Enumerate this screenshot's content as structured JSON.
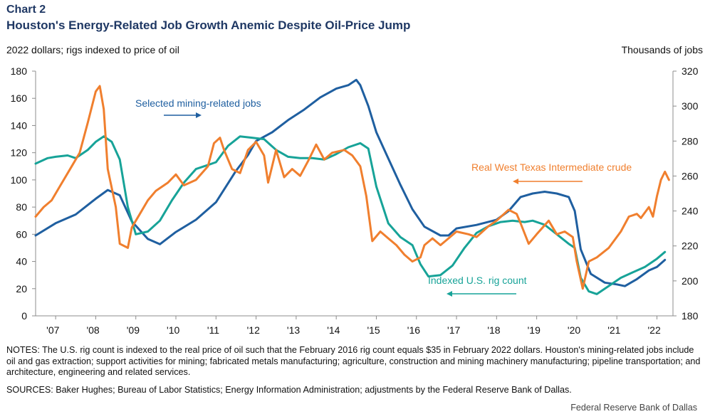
{
  "header": {
    "chart_number": "Chart 2",
    "title": "Houston's Energy-Related Job Growth Anemic Despite Oil-Price Jump",
    "left_unit": "2022 dollars; rigs indexed to price of oil",
    "right_unit": "Thousands  of jobs"
  },
  "footer": {
    "notes": "NOTES: The U.S. rig count is indexed to the real price of oil such that the February 2016 rig count equals $35 in February 2022 dollars. Houston's mining-related jobs include oil and gas extraction; support activities for mining; fabricated metals manufacturing; agriculture, construction and mining machinery manufacturing; pipeline transportation; and architecture, engineering and related services.",
    "sources": "SOURCES: Baker Hughes; Bureau of Labor Statistics; Energy Information Administration; adjustments by the Federal Reserve Bank of Dallas.",
    "credit": "Federal Reserve Bank of Dallas"
  },
  "colors": {
    "jobs": "#1f5fa0",
    "rigs": "#17a398",
    "oil": "#f07f2e",
    "axis": "#8c8c8c"
  },
  "chart_data": {
    "type": "line",
    "xlim": [
      2006.5,
      2022.4
    ],
    "x_tick_labels": [
      "'07",
      "'08",
      "'09",
      "'10",
      "'11",
      "'12",
      "'13",
      "'14",
      "'15",
      "'16",
      "'17",
      "'18",
      "'19",
      "'20",
      "'21",
      "'22"
    ],
    "x_tick_years": [
      2007,
      2008,
      2009,
      2010,
      2011,
      2012,
      2013,
      2014,
      2015,
      2016,
      2017,
      2018,
      2019,
      2020,
      2021,
      2022
    ],
    "y_left": {
      "min": 0,
      "max": 180,
      "ticks": [
        0,
        20,
        40,
        60,
        80,
        100,
        120,
        140,
        160,
        180
      ]
    },
    "y_right": {
      "min": 180,
      "max": 320,
      "ticks": [
        180,
        200,
        220,
        240,
        260,
        280,
        300,
        320
      ]
    },
    "annotations": {
      "jobs": "Selected mining-related jobs",
      "oil": "Real West Texas Intermediate  crude",
      "rigs": "Indexed  U.S. rig count"
    },
    "series": [
      {
        "name": "Selected mining-related jobs",
        "key": "jobs",
        "axis": "right",
        "points": [
          [
            2006.5,
            226
          ],
          [
            2007.0,
            233
          ],
          [
            2007.5,
            238
          ],
          [
            2008.0,
            247
          ],
          [
            2008.3,
            252
          ],
          [
            2008.6,
            249
          ],
          [
            2008.9,
            234
          ],
          [
            2009.3,
            224
          ],
          [
            2009.6,
            221
          ],
          [
            2010.0,
            228
          ],
          [
            2010.5,
            235
          ],
          [
            2011.0,
            245
          ],
          [
            2011.5,
            263
          ],
          [
            2011.8,
            272
          ],
          [
            2012.0,
            280
          ],
          [
            2012.4,
            285
          ],
          [
            2012.8,
            292
          ],
          [
            2013.2,
            298
          ],
          [
            2013.6,
            305
          ],
          [
            2014.0,
            310
          ],
          [
            2014.3,
            312
          ],
          [
            2014.5,
            315
          ],
          [
            2014.6,
            312
          ],
          [
            2014.8,
            300
          ],
          [
            2015.0,
            285
          ],
          [
            2015.3,
            270
          ],
          [
            2015.6,
            255
          ],
          [
            2015.9,
            241
          ],
          [
            2016.2,
            231
          ],
          [
            2016.6,
            226
          ],
          [
            2016.8,
            226
          ],
          [
            2017.0,
            230
          ],
          [
            2017.5,
            232
          ],
          [
            2018.0,
            235
          ],
          [
            2018.3,
            240
          ],
          [
            2018.6,
            248
          ],
          [
            2018.9,
            250
          ],
          [
            2019.2,
            251
          ],
          [
            2019.5,
            250
          ],
          [
            2019.8,
            248
          ],
          [
            2019.95,
            240
          ],
          [
            2020.1,
            218
          ],
          [
            2020.35,
            204
          ],
          [
            2020.7,
            199
          ],
          [
            2021.0,
            198
          ],
          [
            2021.2,
            197
          ],
          [
            2021.5,
            201
          ],
          [
            2021.8,
            206
          ],
          [
            2022.0,
            208
          ],
          [
            2022.2,
            212
          ]
        ]
      },
      {
        "name": "Indexed U.S. rig count",
        "key": "rigs",
        "axis": "left",
        "points": [
          [
            2006.5,
            112
          ],
          [
            2006.8,
            116
          ],
          [
            2007.0,
            117
          ],
          [
            2007.3,
            118
          ],
          [
            2007.5,
            116
          ],
          [
            2007.8,
            122
          ],
          [
            2008.0,
            128
          ],
          [
            2008.2,
            132
          ],
          [
            2008.4,
            128
          ],
          [
            2008.6,
            115
          ],
          [
            2008.8,
            80
          ],
          [
            2009.0,
            60
          ],
          [
            2009.3,
            62
          ],
          [
            2009.6,
            70
          ],
          [
            2009.9,
            85
          ],
          [
            2010.2,
            98
          ],
          [
            2010.5,
            108
          ],
          [
            2010.8,
            111
          ],
          [
            2011.0,
            113
          ],
          [
            2011.3,
            125
          ],
          [
            2011.6,
            132
          ],
          [
            2011.9,
            131
          ],
          [
            2012.2,
            130
          ],
          [
            2012.5,
            122
          ],
          [
            2012.8,
            117
          ],
          [
            2013.1,
            116
          ],
          [
            2013.4,
            116
          ],
          [
            2013.7,
            115
          ],
          [
            2014.0,
            119
          ],
          [
            2014.3,
            124
          ],
          [
            2014.6,
            127
          ],
          [
            2014.8,
            123
          ],
          [
            2015.0,
            95
          ],
          [
            2015.3,
            68
          ],
          [
            2015.6,
            58
          ],
          [
            2015.9,
            52
          ],
          [
            2016.1,
            38
          ],
          [
            2016.3,
            29
          ],
          [
            2016.6,
            30
          ],
          [
            2016.9,
            37
          ],
          [
            2017.2,
            50
          ],
          [
            2017.5,
            61
          ],
          [
            2017.8,
            66
          ],
          [
            2018.1,
            69
          ],
          [
            2018.4,
            70
          ],
          [
            2018.7,
            69
          ],
          [
            2018.9,
            70
          ],
          [
            2019.2,
            67
          ],
          [
            2019.5,
            60
          ],
          [
            2019.8,
            53
          ],
          [
            2019.95,
            50
          ],
          [
            2020.1,
            28
          ],
          [
            2020.3,
            18
          ],
          [
            2020.5,
            16
          ],
          [
            2020.8,
            22
          ],
          [
            2021.1,
            28
          ],
          [
            2021.4,
            32
          ],
          [
            2021.7,
            36
          ],
          [
            2022.0,
            42
          ],
          [
            2022.2,
            47
          ]
        ]
      },
      {
        "name": "Real West Texas Intermediate crude",
        "key": "oil",
        "axis": "left",
        "points": [
          [
            2006.5,
            73
          ],
          [
            2006.7,
            80
          ],
          [
            2006.9,
            85
          ],
          [
            2007.1,
            95
          ],
          [
            2007.4,
            110
          ],
          [
            2007.6,
            120
          ],
          [
            2007.8,
            142
          ],
          [
            2008.0,
            165
          ],
          [
            2008.1,
            169
          ],
          [
            2008.2,
            152
          ],
          [
            2008.3,
            108
          ],
          [
            2008.5,
            80
          ],
          [
            2008.6,
            53
          ],
          [
            2008.8,
            50
          ],
          [
            2008.9,
            65
          ],
          [
            2009.1,
            75
          ],
          [
            2009.3,
            85
          ],
          [
            2009.5,
            92
          ],
          [
            2009.8,
            98
          ],
          [
            2010.0,
            104
          ],
          [
            2010.2,
            96
          ],
          [
            2010.5,
            100
          ],
          [
            2010.8,
            110
          ],
          [
            2010.95,
            127
          ],
          [
            2011.1,
            131
          ],
          [
            2011.2,
            122
          ],
          [
            2011.4,
            108
          ],
          [
            2011.6,
            105
          ],
          [
            2011.8,
            122
          ],
          [
            2012.0,
            128
          ],
          [
            2012.2,
            118
          ],
          [
            2012.3,
            98
          ],
          [
            2012.5,
            122
          ],
          [
            2012.7,
            102
          ],
          [
            2012.9,
            108
          ],
          [
            2013.1,
            103
          ],
          [
            2013.3,
            114
          ],
          [
            2013.5,
            126
          ],
          [
            2013.7,
            115
          ],
          [
            2013.9,
            120
          ],
          [
            2014.2,
            122
          ],
          [
            2014.4,
            118
          ],
          [
            2014.6,
            110
          ],
          [
            2014.75,
            88
          ],
          [
            2014.9,
            55
          ],
          [
            2015.1,
            62
          ],
          [
            2015.3,
            57
          ],
          [
            2015.5,
            52
          ],
          [
            2015.7,
            45
          ],
          [
            2015.9,
            40
          ],
          [
            2016.1,
            43
          ],
          [
            2016.2,
            52
          ],
          [
            2016.4,
            57
          ],
          [
            2016.6,
            52
          ],
          [
            2016.8,
            57
          ],
          [
            2017.0,
            62
          ],
          [
            2017.3,
            60
          ],
          [
            2017.5,
            58
          ],
          [
            2017.8,
            66
          ],
          [
            2018.0,
            70
          ],
          [
            2018.3,
            78
          ],
          [
            2018.5,
            75
          ],
          [
            2018.6,
            68
          ],
          [
            2018.8,
            53
          ],
          [
            2019.0,
            60
          ],
          [
            2019.3,
            70
          ],
          [
            2019.5,
            60
          ],
          [
            2019.7,
            62
          ],
          [
            2019.9,
            58
          ],
          [
            2020.0,
            40
          ],
          [
            2020.15,
            20
          ],
          [
            2020.3,
            40
          ],
          [
            2020.5,
            43
          ],
          [
            2020.8,
            50
          ],
          [
            2021.1,
            62
          ],
          [
            2021.3,
            73
          ],
          [
            2021.5,
            75
          ],
          [
            2021.6,
            72
          ],
          [
            2021.8,
            80
          ],
          [
            2021.9,
            73
          ],
          [
            2022.0,
            88
          ],
          [
            2022.1,
            100
          ],
          [
            2022.2,
            106
          ],
          [
            2022.3,
            100
          ]
        ]
      }
    ]
  }
}
